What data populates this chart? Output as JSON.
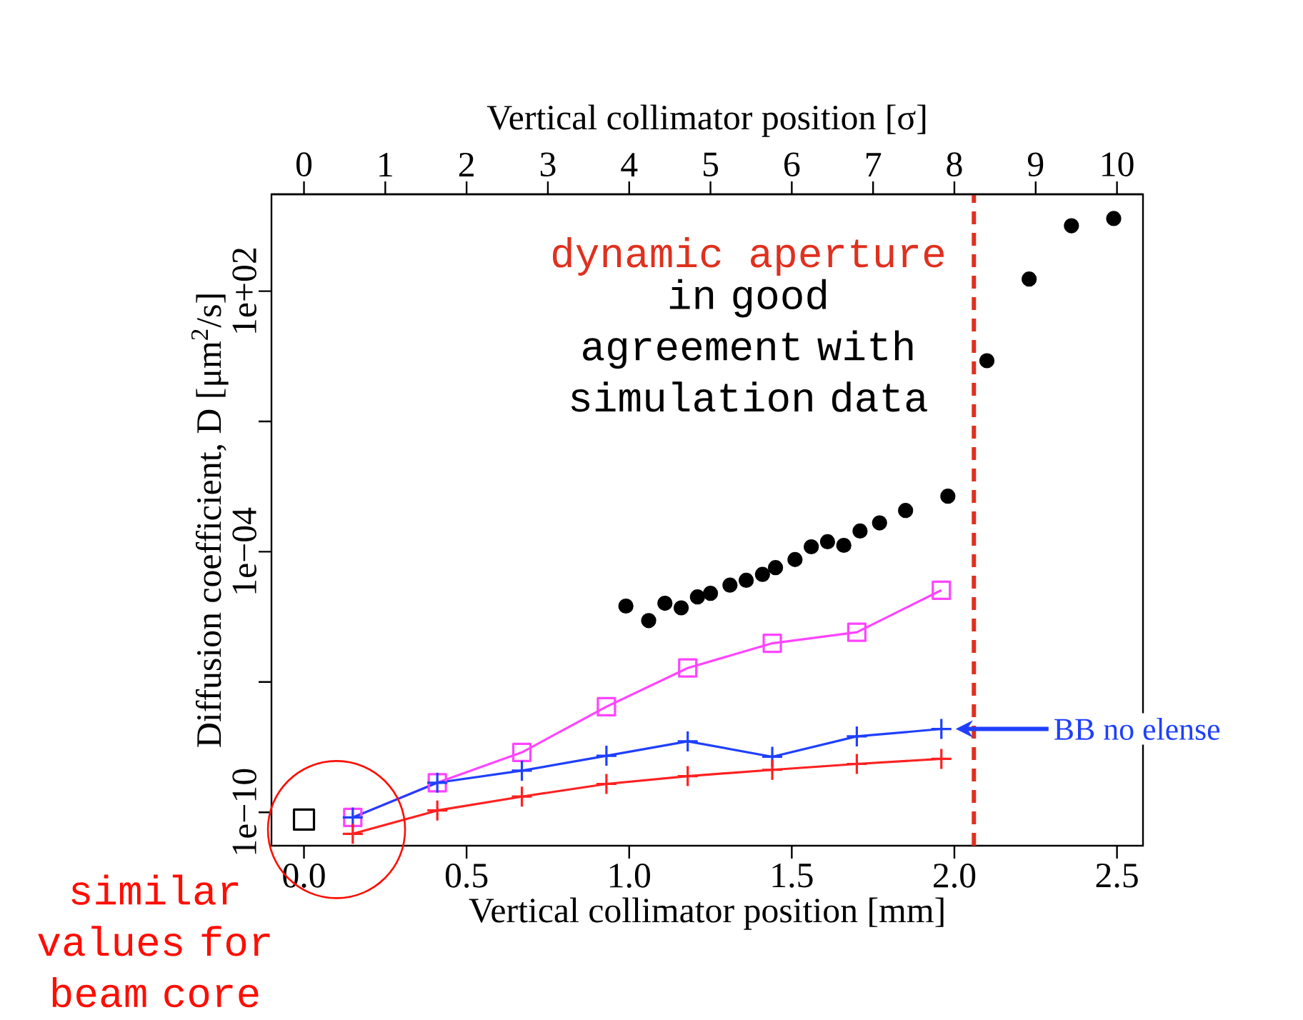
{
  "chart_data": {
    "type": "line",
    "xlabel": "Vertical collimator position [mm]",
    "x2label": "Vertical collimator position [σ]",
    "ylabel": "Diffusion coefficient, D [μm$^{2}$/s]",
    "xlim": [
      -0.1,
      2.58
    ],
    "x2lim": [
      -0.4,
      10.32
    ],
    "xticks": [
      {
        "value": 0,
        "label": "0.0"
      },
      0.5,
      {
        "value": 1,
        "label": "1.0"
      },
      1.5,
      {
        "value": 2,
        "label": "2.0"
      },
      2.5
    ],
    "x2ticks": [
      0,
      1,
      2,
      3,
      4,
      5,
      6,
      7,
      8,
      9,
      10
    ],
    "log": true,
    "ylim": [
      1.7e-11,
      17000.0
    ],
    "yticks": [
      {
        "value": 1e-10,
        "label": "1e−10"
      },
      {
        "value": 1e-07,
        "label": null
      },
      {
        "value": 0.0001,
        "label": "1e−04"
      },
      {
        "value": 0.1,
        "label": null
      },
      {
        "value": 100,
        "label": "1e+02"
      }
    ],
    "grid": false,
    "legend": "right",
    "series": [
      {
        "type": "scatter",
        "marker": "circle",
        "color": "#000000",
        "x": [
          0.99,
          1.06,
          1.11,
          1.16,
          1.21,
          1.25,
          1.31,
          1.36,
          1.41,
          1.45,
          1.51,
          1.56,
          1.61,
          1.66,
          1.71,
          1.77,
          1.85,
          1.98,
          2.1,
          2.23,
          2.36,
          2.49
        ],
        "values": [
          5.6e-06,
          2.6e-06,
          6.5e-06,
          5.1e-06,
          9.1e-06,
          1.1e-05,
          1.7e-05,
          2.2e-05,
          3e-05,
          4.3e-05,
          6.6e-05,
          0.00013,
          0.00017,
          0.00014,
          0.0003,
          0.00046,
          0.00089,
          0.0019,
          2.5,
          190,
          3200,
          4700
        ]
      },
      {
        "type": "scatter",
        "marker": "square",
        "color": "#000000",
        "x": [
          0.0
        ],
        "values": [
          6.8e-11
        ]
      },
      {
        "marker": "square",
        "color": "#ff44ff",
        "x": [
          0.15,
          0.41,
          0.67,
          0.93,
          1.18,
          1.44,
          1.7,
          1.96
        ],
        "values": [
          7.6e-11,
          4.8e-10,
          2.4e-09,
          2.7e-08,
          2.1e-07,
          7.8e-07,
          1.4e-06,
          1.3e-05
        ]
      },
      {
        "marker": "cross",
        "name": "BB no elense",
        "color": "#1f3fff",
        "x": [
          0.15,
          0.41,
          0.67,
          0.93,
          1.18,
          1.44,
          1.7,
          1.96
        ],
        "values": [
          7.6e-11,
          4.8e-10,
          9.1e-10,
          2e-09,
          4.3e-09,
          1.9e-09,
          5.6e-09,
          8.3e-09
        ]
      },
      {
        "marker": "cross",
        "color": "#ff2020",
        "x": [
          0.15,
          0.41,
          0.67,
          0.93,
          1.18,
          1.44,
          1.7,
          1.96
        ],
        "values": [
          3.2e-11,
          1.1e-10,
          2.3e-10,
          4.5e-10,
          6.8e-10,
          9.5e-10,
          1.3e-09,
          1.7e-09
        ]
      }
    ],
    "line_style": "solid",
    "ref_lines": [
      {
        "axis": "x",
        "value": 2.06,
        "label": "dynamic aperture",
        "color": "#e0301e",
        "line_style": "dashed"
      }
    ],
    "annotations": [
      "in good agreement with simulation data",
      {
        "text": "similar values for beam core",
        "x": 0.1,
        "y": 4e-11
      }
    ]
  }
}
